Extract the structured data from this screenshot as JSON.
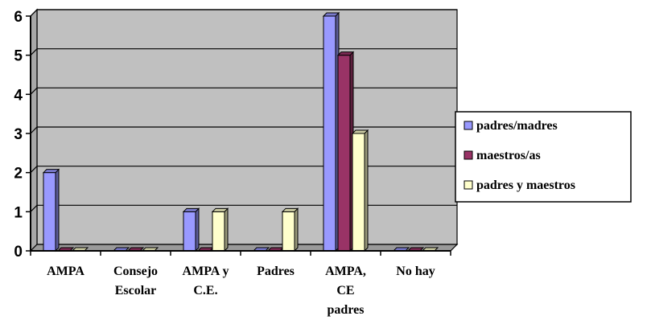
{
  "chart_data": {
    "type": "bar",
    "title": "",
    "xlabel": "",
    "ylabel": "",
    "ylim": [
      0,
      6
    ],
    "yticks": [
      0,
      1,
      2,
      3,
      4,
      5,
      6
    ],
    "grid": true,
    "legend_position": "right",
    "categories": [
      [
        "AMPA"
      ],
      [
        "Consejo",
        "Escolar"
      ],
      [
        "AMPA y",
        "C.E."
      ],
      [
        "Padres"
      ],
      [
        "AMPA,",
        "CE",
        "padres"
      ],
      [
        "No hay"
      ]
    ],
    "series": [
      {
        "name": "padres/madres",
        "color": "#9999ff",
        "values": [
          2,
          0,
          1,
          0,
          6,
          0
        ]
      },
      {
        "name": "maestros/as",
        "color": "#993366",
        "values": [
          0,
          0,
          0,
          0,
          5,
          0
        ]
      },
      {
        "name": "padres y maestros",
        "color": "#ffffcc",
        "values": [
          0,
          0,
          1,
          1,
          3,
          0
        ]
      }
    ],
    "plot_background": "#c0c0c0"
  }
}
